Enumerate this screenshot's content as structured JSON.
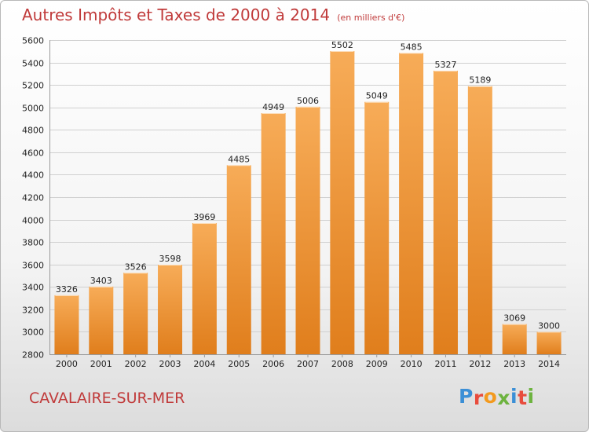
{
  "title": "Autres Impôts et Taxes de 2000 à 2014",
  "subtitle": "(en milliers d'€)",
  "commune": "CAVALAIRE-SUR-MER",
  "brand": {
    "letters": [
      "P",
      "r",
      "o",
      "x",
      "i",
      "t",
      "i"
    ],
    "colors": [
      "#3b8fd6",
      "#e84c3d",
      "#f39a1e",
      "#6db33f",
      "#3b8fd6",
      "#e84c3d",
      "#6db33f"
    ]
  },
  "colors": {
    "bar_light": "#f7ac58",
    "bar_dark": "#e07e1c",
    "title": "#c03a3a",
    "grid": "#d0d0d0",
    "text": "#222222"
  },
  "chart_data": {
    "type": "bar",
    "title": "Autres Impôts et Taxes de 2000 à 2014",
    "subtitle": "(en milliers d'€)",
    "categories": [
      "2000",
      "2001",
      "2002",
      "2003",
      "2004",
      "2005",
      "2006",
      "2007",
      "2008",
      "2009",
      "2010",
      "2011",
      "2012",
      "2013",
      "2014"
    ],
    "values": [
      3326,
      3403,
      3526,
      3598,
      3969,
      4485,
      4949,
      5006,
      5502,
      5049,
      5485,
      5327,
      5189,
      3069,
      3000
    ],
    "ylim": [
      2800,
      5600
    ],
    "yticks": [
      2800,
      3000,
      3200,
      3400,
      3600,
      3800,
      4000,
      4200,
      4400,
      4600,
      4800,
      5000,
      5200,
      5400,
      5600
    ],
    "grid": true,
    "data_labels": true
  }
}
